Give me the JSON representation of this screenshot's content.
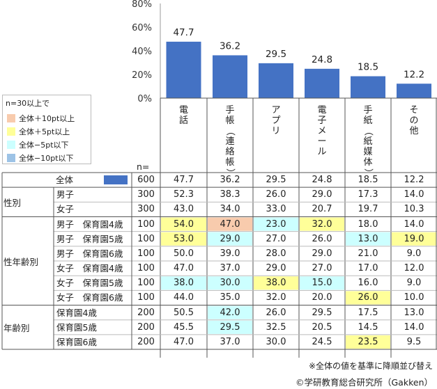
{
  "chart_data": {
    "type": "bar",
    "categories": [
      "電話",
      "手帳（連絡帳）",
      "アプリ",
      "電子メール",
      "手紙（紙媒体）",
      "その他"
    ],
    "category_vertical_text": [
      [
        "電",
        "話"
      ],
      [
        "手",
        "帳",
        "（",
        "連",
        "絡",
        "帳",
        "）"
      ],
      [
        "ア",
        "プ",
        "リ"
      ],
      [
        "電",
        "子",
        "メ",
        "ー",
        "ル"
      ],
      [
        "手",
        "紙",
        "（",
        "紙",
        "媒",
        "体",
        "）"
      ],
      [
        "そ",
        "の",
        "他"
      ]
    ],
    "values": [
      47.7,
      36.2,
      29.5,
      24.8,
      18.5,
      12.2
    ],
    "value_labels": [
      "47.7",
      "36.2",
      "29.5",
      "24.8",
      "18.5",
      "12.2"
    ],
    "ylim": [
      0,
      80
    ],
    "yticks": [
      "0%",
      "20%",
      "40%",
      "60%",
      "80%"
    ],
    "bar_color": "#4472C4"
  },
  "legend": {
    "title": "n=30以上で",
    "items": [
      {
        "label": "全体＋10pt以上",
        "color": "#F8CBAD"
      },
      {
        "label": "全体＋5pt以上",
        "color": "#FFFF99"
      },
      {
        "label": "全体−5pt以下",
        "color": "#CCFFFF"
      },
      {
        "label": "全体−10pt以下",
        "color": "#9DC3E6"
      }
    ]
  },
  "table": {
    "n_header": "n=",
    "total_swatch_color": "#4472C4",
    "rows": [
      {
        "group": "",
        "label": "全体",
        "n": "600",
        "values": [
          "47.7",
          "36.2",
          "29.5",
          "24.8",
          "18.5",
          "12.2"
        ],
        "hl": [
          "",
          "",
          "",
          "",
          "",
          ""
        ]
      },
      {
        "group": "性別",
        "label": "男子",
        "n": "300",
        "values": [
          "52.3",
          "38.3",
          "26.0",
          "29.0",
          "17.3",
          "14.0"
        ],
        "hl": [
          "",
          "",
          "",
          "",
          "",
          ""
        ]
      },
      {
        "group": "",
        "label": "女子",
        "n": "300",
        "values": [
          "43.0",
          "34.0",
          "33.0",
          "20.7",
          "19.7",
          "10.3"
        ],
        "hl": [
          "",
          "",
          "",
          "",
          "",
          ""
        ]
      },
      {
        "group": "性年齢別",
        "label": "男子　保育園4歳",
        "n": "100",
        "values": [
          "54.0",
          "47.0",
          "23.0",
          "32.0",
          "18.0",
          "14.0"
        ],
        "hl": [
          "#FFFF99",
          "#F8CBAD",
          "#CCFFFF",
          "#FFFF99",
          "",
          ""
        ]
      },
      {
        "group": "",
        "label": "男子　保育園5歳",
        "n": "100",
        "values": [
          "53.0",
          "29.0",
          "27.0",
          "26.0",
          "13.0",
          "19.0"
        ],
        "hl": [
          "#FFFF99",
          "#CCFFFF",
          "",
          "",
          "#CCFFFF",
          "#FFFF99"
        ]
      },
      {
        "group": "",
        "label": "男子　保育園6歳",
        "n": "100",
        "values": [
          "50.0",
          "39.0",
          "28.0",
          "29.0",
          "21.0",
          "9.0"
        ],
        "hl": [
          "",
          "",
          "",
          "",
          "",
          ""
        ]
      },
      {
        "group": "",
        "label": "女子　保育園4歳",
        "n": "100",
        "values": [
          "47.0",
          "37.0",
          "29.0",
          "27.0",
          "17.0",
          "12.0"
        ],
        "hl": [
          "",
          "",
          "",
          "",
          "",
          ""
        ]
      },
      {
        "group": "",
        "label": "女子　保育園5歳",
        "n": "100",
        "values": [
          "38.0",
          "30.0",
          "38.0",
          "15.0",
          "16.0",
          "9.0"
        ],
        "hl": [
          "#CCFFFF",
          "#CCFFFF",
          "#FFFF99",
          "#CCFFFF",
          "",
          ""
        ]
      },
      {
        "group": "",
        "label": "女子　保育園6歳",
        "n": "100",
        "values": [
          "44.0",
          "35.0",
          "32.0",
          "20.0",
          "26.0",
          "10.0"
        ],
        "hl": [
          "",
          "",
          "",
          "",
          "#FFFF99",
          ""
        ]
      },
      {
        "group": "年齢別",
        "label": "保育園4歳",
        "n": "200",
        "values": [
          "50.5",
          "42.0",
          "26.0",
          "29.5",
          "17.5",
          "13.0"
        ],
        "hl": [
          "",
          "#CCFFFF",
          "",
          "",
          "",
          ""
        ]
      },
      {
        "group": "",
        "label": "保育園5歳",
        "n": "200",
        "values": [
          "45.5",
          "29.5",
          "32.5",
          "20.5",
          "14.5",
          "14.0"
        ],
        "hl": [
          "",
          "#CCFFFF",
          "",
          "",
          "",
          ""
        ]
      },
      {
        "group": "",
        "label": "保育園6歳",
        "n": "200",
        "values": [
          "47.0",
          "37.0",
          "30.0",
          "24.5",
          "23.5",
          "9.5"
        ],
        "hl": [
          "",
          "",
          "",
          "",
          "#FFFF99",
          ""
        ]
      }
    ],
    "groups": [
      {
        "label": "性別",
        "start": 1,
        "end": 2
      },
      {
        "label": "性年齢別",
        "start": 3,
        "end": 8
      },
      {
        "label": "年齢別",
        "start": 9,
        "end": 11
      }
    ]
  },
  "footnote": "※全体の値を基準に降順並び替え",
  "source": "©学研教育総合研究所（Gakken）"
}
